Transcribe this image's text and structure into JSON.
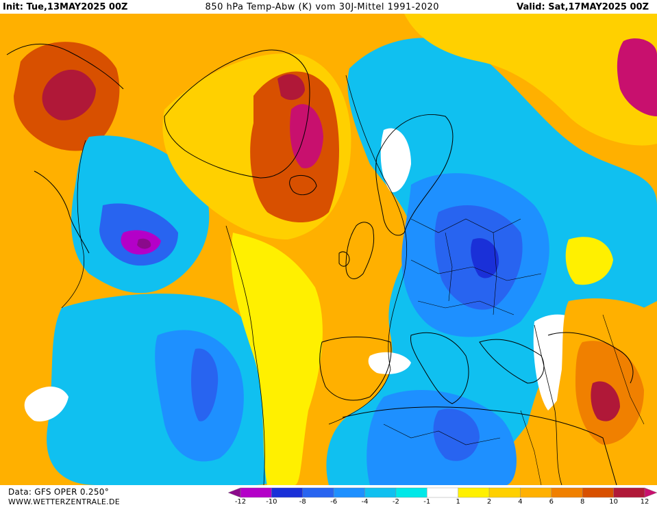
{
  "header": {
    "init": "Init: Tue,13MAY2025 00Z",
    "title": "850 hPa Temp-Abw (K) vom 30J-Mittel 1991-2020",
    "valid": "Valid: Sat,17MAY2025 00Z"
  },
  "footer": {
    "source": "Data: GFS OPER 0.250°",
    "website": "WWW.WETTERZENTRALE.DE"
  },
  "legend": {
    "ticks": [
      "-12",
      "-10",
      "-8",
      "-6",
      "-4",
      "-2",
      "-1",
      "1",
      "2",
      "4",
      "6",
      "8",
      "10",
      "12"
    ],
    "colors": [
      "#8b0a8b",
      "#b400c8",
      "#1a30d8",
      "#2864f0",
      "#1e90ff",
      "#10c0f0",
      "#00e8e8",
      "#ffffff",
      "#fff000",
      "#ffd000",
      "#ffb000",
      "#f08000",
      "#d85000",
      "#b01838",
      "#c8106e"
    ]
  },
  "map": {
    "overlays": [
      "land-outlines",
      "country-borders",
      "zero-contour"
    ],
    "palette": {
      "white": "#ffffff",
      "yellow": "#fff000",
      "gold": "#ffd000",
      "orange": "#ffb000",
      "dark-orange": "#f08000",
      "brown-orange": "#d85000",
      "crimson": "#b01838",
      "magenta": "#c8106e",
      "cyan": "#00e8e8",
      "light-blue": "#10c0f0",
      "sky-blue": "#1e90ff",
      "blue": "#2864f0",
      "dark-blue": "#1a30d8",
      "purple": "#b400c8",
      "dark-purple": "#8b0a8b"
    }
  }
}
